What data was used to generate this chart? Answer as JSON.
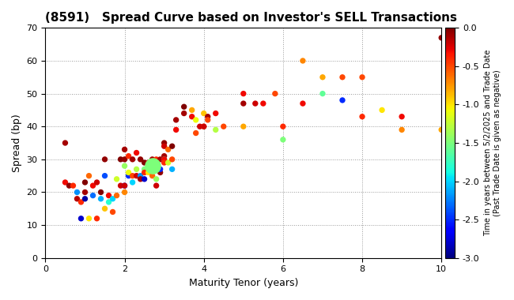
{
  "title": "(8591)   Spread Curve based on Investor's SELL Transactions",
  "xlabel": "Maturity Tenor (years)",
  "ylabel": "Spread (bp)",
  "colorbar_label": "Time in years between 5/2/2025 and Trade Date\n(Past Trade Date is given as negative)",
  "xlim": [
    0,
    10
  ],
  "ylim": [
    0,
    70
  ],
  "xticks": [
    0,
    2,
    4,
    6,
    8,
    10
  ],
  "yticks": [
    0,
    10,
    20,
    30,
    40,
    50,
    60,
    70
  ],
  "cmap_min": -3.0,
  "cmap_max": 0.0,
  "cmap_ticks": [
    0.0,
    -0.5,
    -1.0,
    -1.5,
    -2.0,
    -2.5,
    -3.0
  ],
  "points": [
    [
      0.5,
      35,
      -0.1
    ],
    [
      0.5,
      23,
      -0.3
    ],
    [
      0.6,
      22,
      -0.05
    ],
    [
      0.7,
      22,
      -0.4
    ],
    [
      0.8,
      20,
      -2.2
    ],
    [
      0.8,
      18,
      -0.15
    ],
    [
      0.9,
      17,
      -0.4
    ],
    [
      0.9,
      12,
      -2.8
    ],
    [
      1.0,
      23,
      -0.0
    ],
    [
      1.0,
      20,
      -0.1
    ],
    [
      1.0,
      18,
      -2.9
    ],
    [
      1.1,
      25,
      -0.6
    ],
    [
      1.1,
      12,
      -1.0
    ],
    [
      1.2,
      22,
      -0.3
    ],
    [
      1.2,
      19,
      -2.3
    ],
    [
      1.3,
      23,
      -0.2
    ],
    [
      1.3,
      12,
      -0.4
    ],
    [
      1.4,
      20,
      -0.0
    ],
    [
      1.4,
      18,
      -2.1
    ],
    [
      1.5,
      30,
      -0.05
    ],
    [
      1.5,
      25,
      -2.4
    ],
    [
      1.5,
      15,
      -0.9
    ],
    [
      1.6,
      19,
      -0.3
    ],
    [
      1.6,
      17,
      -1.8
    ],
    [
      1.7,
      14,
      -0.5
    ],
    [
      1.7,
      18,
      -2.0
    ],
    [
      1.8,
      24,
      -1.2
    ],
    [
      1.8,
      19,
      -0.6
    ],
    [
      1.9,
      30,
      -0.0
    ],
    [
      1.9,
      22,
      -0.2
    ],
    [
      2.0,
      33,
      -0.1
    ],
    [
      2.0,
      30,
      -0.05
    ],
    [
      2.0,
      28,
      -1.4
    ],
    [
      2.0,
      22,
      -2.7
    ],
    [
      2.0,
      20,
      -0.7
    ],
    [
      2.0,
      22,
      -0.2
    ],
    [
      2.1,
      31,
      -0.4
    ],
    [
      2.1,
      25,
      -2.5
    ],
    [
      2.1,
      26,
      -1.1
    ],
    [
      2.2,
      30,
      -0.1
    ],
    [
      2.2,
      25,
      -0.5
    ],
    [
      2.2,
      23,
      -2.0
    ],
    [
      2.3,
      32,
      -0.3
    ],
    [
      2.3,
      27,
      -1.3
    ],
    [
      2.3,
      25,
      -0.2
    ],
    [
      2.4,
      30,
      -0.05
    ],
    [
      2.4,
      25,
      -2.2
    ],
    [
      2.4,
      24,
      -0.1
    ],
    [
      2.5,
      29,
      -0.0
    ],
    [
      2.5,
      27,
      -1.5
    ],
    [
      2.5,
      26,
      -0.4
    ],
    [
      2.5,
      24,
      -2.8
    ],
    [
      2.6,
      29,
      -0.2
    ],
    [
      2.6,
      26,
      -1.0
    ],
    [
      2.6,
      28,
      -0.3
    ],
    [
      2.7,
      30,
      -0.1
    ],
    [
      2.7,
      29,
      -2.0
    ],
    [
      2.7,
      25,
      -0.6
    ],
    [
      2.8,
      30,
      -0.4
    ],
    [
      2.8,
      24,
      -1.4
    ],
    [
      2.8,
      22,
      -0.2
    ],
    [
      2.9,
      30,
      -0.1
    ],
    [
      2.9,
      26,
      -0.05
    ],
    [
      2.9,
      27,
      -2.5
    ],
    [
      3.0,
      35,
      -0.05
    ],
    [
      3.0,
      31,
      -0.1
    ],
    [
      3.0,
      30,
      -1.8
    ],
    [
      3.0,
      30,
      -0.3
    ],
    [
      3.0,
      29,
      -0.4
    ],
    [
      3.0,
      34,
      -0.2
    ],
    [
      3.1,
      33,
      -0.6
    ],
    [
      3.1,
      29,
      -1.2
    ],
    [
      3.2,
      34,
      -0.0
    ],
    [
      3.2,
      30,
      -0.5
    ],
    [
      3.2,
      27,
      -2.1
    ],
    [
      3.3,
      42,
      -0.1
    ],
    [
      3.3,
      39,
      -0.3
    ],
    [
      3.5,
      46,
      -0.0
    ],
    [
      3.5,
      44,
      -0.1
    ],
    [
      3.7,
      45,
      -0.8
    ],
    [
      3.7,
      43,
      -0.3
    ],
    [
      3.8,
      42,
      -1.1
    ],
    [
      3.8,
      38,
      -0.5
    ],
    [
      3.9,
      40,
      -0.2
    ],
    [
      4.0,
      44,
      -0.9
    ],
    [
      4.0,
      40,
      -0.5
    ],
    [
      4.0,
      40,
      -0.2
    ],
    [
      4.1,
      43,
      -0.1
    ],
    [
      4.1,
      42,
      -0.5
    ],
    [
      4.3,
      44,
      -0.3
    ],
    [
      4.3,
      39,
      -1.3
    ],
    [
      4.5,
      40,
      -0.5
    ],
    [
      5.0,
      47,
      -0.1
    ],
    [
      5.0,
      50,
      -0.3
    ],
    [
      5.0,
      40,
      -0.8
    ],
    [
      5.3,
      47,
      -0.2
    ],
    [
      5.5,
      47,
      -0.3
    ],
    [
      5.8,
      50,
      -0.5
    ],
    [
      6.0,
      40,
      -0.4
    ],
    [
      6.0,
      36,
      -1.5
    ],
    [
      6.5,
      60,
      -0.7
    ],
    [
      6.5,
      47,
      -0.3
    ],
    [
      7.0,
      55,
      -0.8
    ],
    [
      7.0,
      50,
      -1.6
    ],
    [
      7.5,
      55,
      -0.5
    ],
    [
      7.5,
      48,
      -2.5
    ],
    [
      8.0,
      55,
      -0.5
    ],
    [
      8.0,
      43,
      -0.4
    ],
    [
      8.5,
      45,
      -1.0
    ],
    [
      9.0,
      43,
      -0.3
    ],
    [
      9.0,
      39,
      -0.7
    ],
    [
      10.0,
      67,
      -0.05
    ],
    [
      10.0,
      39,
      -0.8
    ]
  ],
  "large_point_x": 2.7,
  "large_point_y": 28,
  "large_point_c": -1.5,
  "background_color": "#ffffff",
  "grid_color": "#999999",
  "cmap": "jet_r"
}
